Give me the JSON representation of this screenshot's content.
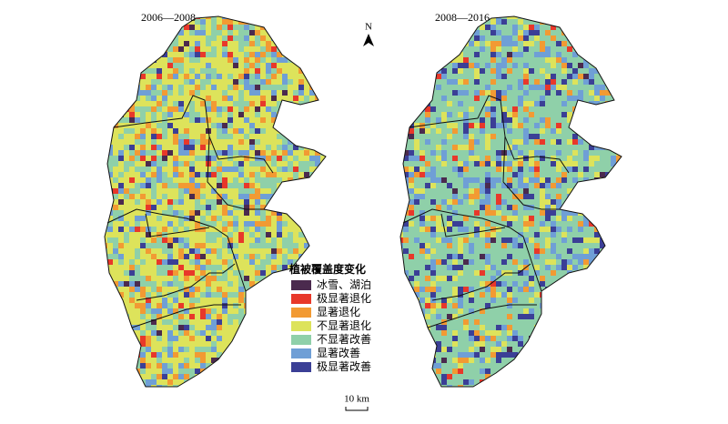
{
  "maps": [
    {
      "title": "2006—2008"
    },
    {
      "title": "2008—2016"
    }
  ],
  "north_label": "N",
  "legend": {
    "title": "植被覆盖度变化",
    "items": [
      {
        "label": "冰雪、湖泊",
        "color": "#4b2a4e"
      },
      {
        "label": "极显著退化",
        "color": "#e8382a"
      },
      {
        "label": "显著退化",
        "color": "#f29a33"
      },
      {
        "label": "不显著退化",
        "color": "#dde35b"
      },
      {
        "label": "不显著改善",
        "color": "#8fd0a9"
      },
      {
        "label": "显著改善",
        "color": "#6f9fd6"
      },
      {
        "label": "极显著改善",
        "color": "#3b3f96"
      }
    ]
  },
  "scale_bar": "10 km"
}
